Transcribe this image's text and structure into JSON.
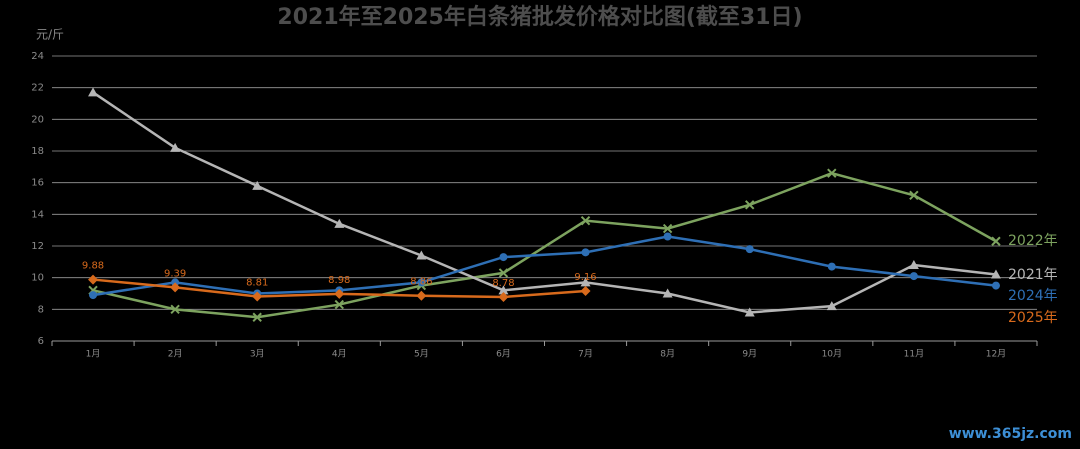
{
  "chart_data": {
    "type": "line",
    "title": "2021年至2025年白条猪批发价格对比图(截至31日)",
    "y_axis_label": "元/斤",
    "categories": [
      "1月",
      "2月",
      "3月",
      "4月",
      "5月",
      "6月",
      "7月",
      "8月",
      "9月",
      "10月",
      "11月",
      "12月"
    ],
    "series": [
      {
        "name": "2022年",
        "color": "#7da35f",
        "marker": "x",
        "values": [
          9.2,
          8.0,
          7.5,
          8.3,
          9.5,
          10.3,
          13.6,
          13.1,
          14.6,
          16.6,
          15.2,
          12.3
        ]
      },
      {
        "name": "2021年",
        "color": "#b5b5b5",
        "marker": "triangle",
        "values": [
          21.7,
          18.2,
          15.8,
          13.4,
          11.4,
          9.2,
          9.7,
          9.0,
          7.8,
          8.2,
          10.8,
          10.2
        ]
      },
      {
        "name": "2024年",
        "color": "#2e6fb5",
        "marker": "circle",
        "values": [
          8.9,
          9.7,
          9.0,
          9.2,
          9.7,
          11.3,
          11.6,
          12.6,
          11.8,
          10.7,
          10.1,
          9.5
        ]
      },
      {
        "name": "2025年",
        "color": "#d86a1c",
        "marker": "diamond",
        "show_values": true,
        "values": [
          9.88,
          9.39,
          8.81,
          8.98,
          8.86,
          8.78,
          9.16,
          null,
          null,
          null,
          null,
          null
        ]
      }
    ],
    "ylim": [
      6,
      24
    ],
    "yticks": [
      6,
      8,
      10,
      12,
      14,
      16,
      18,
      20,
      22,
      24
    ],
    "grid": true,
    "watermark": "www.365jz.com"
  }
}
